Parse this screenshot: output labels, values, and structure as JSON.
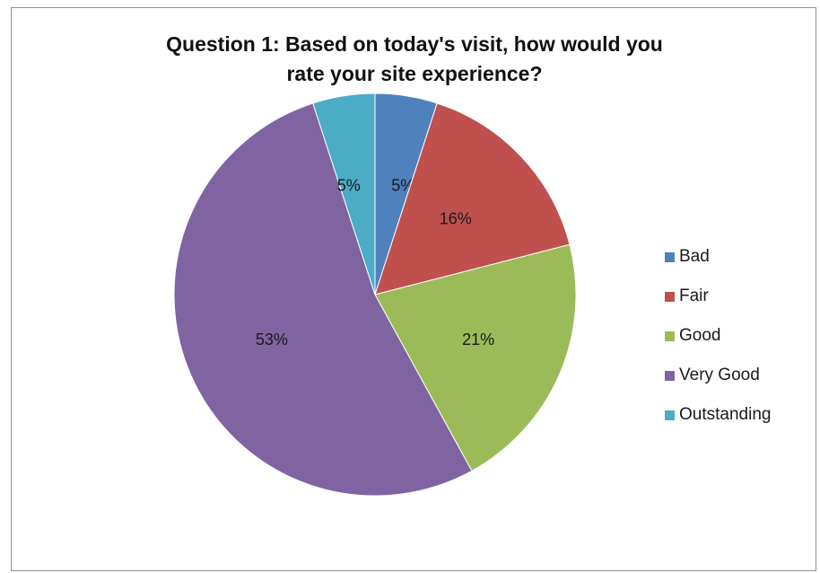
{
  "chart_data": {
    "type": "pie",
    "title_lines": [
      "Question 1: Based on today's visit, how would you",
      "rate your site experience?"
    ],
    "categories": [
      "Bad",
      "Fair",
      "Good",
      "Very Good",
      "Outstanding"
    ],
    "values": [
      5,
      16,
      21,
      53,
      5
    ],
    "data_labels": [
      "5%",
      "16%",
      "21%",
      "53%",
      "5%"
    ],
    "colors": [
      "#4f81bd",
      "#c0504d",
      "#9bbb59",
      "#8064a2",
      "#4bacc6"
    ],
    "legend_position": "right"
  }
}
